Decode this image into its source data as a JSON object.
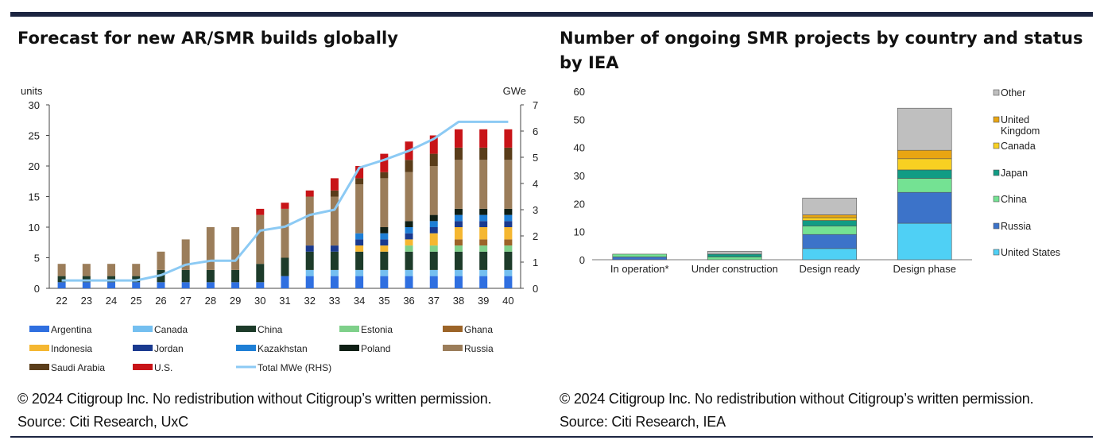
{
  "left_panel": {
    "title": "Forecast for new AR/SMR builds globally",
    "copyright": "© 2024 Citigroup Inc. No redistribution without Citigroup’s written permission.",
    "source": "Source: Citi Research, UxC"
  },
  "right_panel": {
    "title": "Number of ongoing SMR projects by country and status by IEA",
    "copyright": "© 2024 Citigroup Inc. No redistribution without Citigroup’s written permission.",
    "source": "Source: Citi Research, IEA"
  },
  "chart_data": [
    {
      "type": "bar",
      "stacked": true,
      "title": "Forecast for new AR/SMR builds globally",
      "ylabel": "units",
      "y2label": "GWe",
      "ylim": [
        0,
        30
      ],
      "yticks": [
        0,
        5,
        10,
        15,
        20,
        25,
        30
      ],
      "y2lim": [
        0,
        7
      ],
      "y2ticks": [
        0,
        1,
        2,
        3,
        4,
        5,
        6,
        7
      ],
      "grid": false,
      "legend_position": "bottom",
      "categories": [
        "22",
        "23",
        "24",
        "25",
        "26",
        "27",
        "28",
        "29",
        "30",
        "31",
        "32",
        "33",
        "34",
        "35",
        "36",
        "37",
        "38",
        "39",
        "40"
      ],
      "series": [
        {
          "name": "Argentina",
          "color": "#2f6fe0",
          "values": [
            1,
            1,
            1,
            1,
            1,
            1,
            1,
            1,
            1,
            2,
            2,
            2,
            2,
            2,
            2,
            2,
            2,
            2,
            2
          ]
        },
        {
          "name": "Canada",
          "color": "#74bff0",
          "values": [
            0,
            0,
            0,
            0,
            0,
            0,
            0,
            0,
            0,
            0,
            1,
            1,
            1,
            1,
            1,
            1,
            1,
            1,
            1
          ]
        },
        {
          "name": "China",
          "color": "#1d3b2a",
          "values": [
            1,
            1,
            1,
            1,
            2,
            2,
            2,
            2,
            3,
            3,
            3,
            3,
            3,
            3,
            3,
            3,
            3,
            3,
            3
          ]
        },
        {
          "name": "Estonia",
          "color": "#7fd08a",
          "values": [
            0,
            0,
            0,
            0,
            0,
            0,
            0,
            0,
            0,
            0,
            0,
            0,
            0,
            0,
            1,
            1,
            1,
            1,
            1
          ]
        },
        {
          "name": "Ghana",
          "color": "#9c6428",
          "values": [
            0,
            0,
            0,
            0,
            0,
            0,
            0,
            0,
            0,
            0,
            0,
            0,
            0,
            0,
            0,
            0,
            1,
            1,
            1
          ]
        },
        {
          "name": "Indonesia",
          "color": "#f5b731",
          "values": [
            0,
            0,
            0,
            0,
            0,
            0,
            0,
            0,
            0,
            0,
            0,
            0,
            1,
            1,
            1,
            2,
            2,
            2,
            2
          ]
        },
        {
          "name": "Jordan",
          "color": "#1a3a8f",
          "values": [
            0,
            0,
            0,
            0,
            0,
            0,
            0,
            0,
            0,
            0,
            1,
            1,
            1,
            1,
            1,
            1,
            1,
            1,
            1
          ]
        },
        {
          "name": "Kazakhstan",
          "color": "#1e7fd6",
          "values": [
            0,
            0,
            0,
            0,
            0,
            0,
            0,
            0,
            0,
            0,
            0,
            0,
            1,
            1,
            1,
            1,
            1,
            1,
            1
          ]
        },
        {
          "name": "Poland",
          "color": "#0f1f15",
          "values": [
            0,
            0,
            0,
            0,
            0,
            0,
            0,
            0,
            0,
            0,
            0,
            0,
            0,
            1,
            1,
            1,
            1,
            1,
            1
          ]
        },
        {
          "name": "Russia",
          "color": "#9b7d5a",
          "values": [
            2,
            2,
            2,
            2,
            3,
            5,
            7,
            7,
            8,
            8,
            8,
            8,
            8,
            8,
            8,
            8,
            8,
            8,
            8
          ]
        },
        {
          "name": "Saudi Arabia",
          "color": "#5a3d1a",
          "values": [
            0,
            0,
            0,
            0,
            0,
            0,
            0,
            0,
            0,
            0,
            0,
            1,
            1,
            1,
            2,
            2,
            2,
            2,
            2
          ]
        },
        {
          "name": "U.S.",
          "color": "#c81418",
          "values": [
            0,
            0,
            0,
            0,
            0,
            0,
            0,
            0,
            1,
            1,
            1,
            2,
            2,
            3,
            3,
            3,
            3,
            3,
            3
          ]
        },
        {
          "name": "Total MWe (RHS)",
          "color": "#8ccaf4",
          "type": "line",
          "axis": "right",
          "values": [
            0.3,
            0.3,
            0.3,
            0.3,
            0.5,
            0.9,
            1.05,
            1.05,
            2.2,
            2.35,
            2.8,
            3.0,
            4.6,
            4.9,
            5.25,
            5.7,
            6.35,
            6.35,
            6.35
          ]
        }
      ]
    },
    {
      "type": "bar",
      "stacked": true,
      "title": "Number of ongoing SMR projects by country and status by IEA",
      "ylim": [
        0,
        60
      ],
      "yticks": [
        0,
        10,
        20,
        30,
        40,
        50,
        60
      ],
      "grid": false,
      "legend_position": "right",
      "categories": [
        "In operation*",
        "Under construction",
        "Design ready",
        "Design phase"
      ],
      "series": [
        {
          "name": "United States",
          "color": "#4fd0f5",
          "values": [
            0,
            0,
            4,
            13
          ]
        },
        {
          "name": "Russia",
          "color": "#3c73c9",
          "values": [
            1,
            0,
            5,
            11
          ]
        },
        {
          "name": "China",
          "color": "#74e293",
          "values": [
            1,
            1,
            3,
            5
          ]
        },
        {
          "name": "Japan",
          "color": "#119c84",
          "values": [
            0,
            1,
            2,
            3
          ]
        },
        {
          "name": "Canada",
          "color": "#f8d022",
          "values": [
            0,
            0,
            1,
            4
          ]
        },
        {
          "name": "United Kingdom",
          "color": "#e8a512",
          "values": [
            0,
            0,
            1,
            3
          ]
        },
        {
          "name": "Other",
          "color": "#bfbfbf",
          "values": [
            0,
            1,
            6,
            15
          ]
        }
      ]
    }
  ]
}
